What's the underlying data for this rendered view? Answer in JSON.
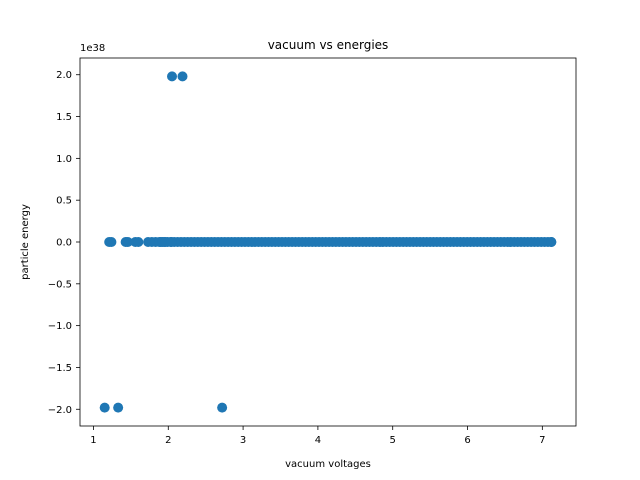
{
  "chart_data": {
    "type": "scatter",
    "title": "vacuum vs energies",
    "xlabel": "vacuum voltages",
    "ylabel": "particle energy",
    "offset_label": "1e38",
    "xlim": [
      0.82,
      7.45
    ],
    "ylim": [
      -2.2,
      2.2
    ],
    "xticks": [
      1,
      2,
      3,
      4,
      5,
      6,
      7
    ],
    "xtick_labels": [
      "1",
      "2",
      "3",
      "4",
      "5",
      "6",
      "7"
    ],
    "yticks": [
      2.0,
      1.5,
      1.0,
      0.5,
      0.0,
      -0.5,
      -1.0,
      -1.5,
      -2.0
    ],
    "ytick_labels": [
      "2.0",
      "1.5",
      "1.0",
      "0.5",
      "0.0",
      "−0.5",
      "−1.0",
      "−1.5",
      "−2.0"
    ],
    "grid": false,
    "color": "#1f77b4",
    "series": [
      {
        "x": [
          1.15,
          1.33,
          1.21,
          1.24,
          1.43,
          1.46,
          1.56,
          1.6,
          1.73,
          1.78,
          1.83,
          1.88,
          1.92,
          1.96,
          2.04,
          2.05,
          2.19,
          2.72,
          7.12
        ],
        "y": [
          -1.98,
          -1.98,
          0.0,
          0.0,
          0.0,
          0.0,
          0.0,
          0.0,
          0.0,
          0.0,
          0.0,
          0.0,
          0.0,
          0.0,
          0.0,
          1.98,
          1.98,
          -1.98,
          0.0
        ]
      }
    ],
    "dense_band": {
      "x_start": 1.9,
      "x_end": 7.12,
      "y": 0.0
    }
  }
}
